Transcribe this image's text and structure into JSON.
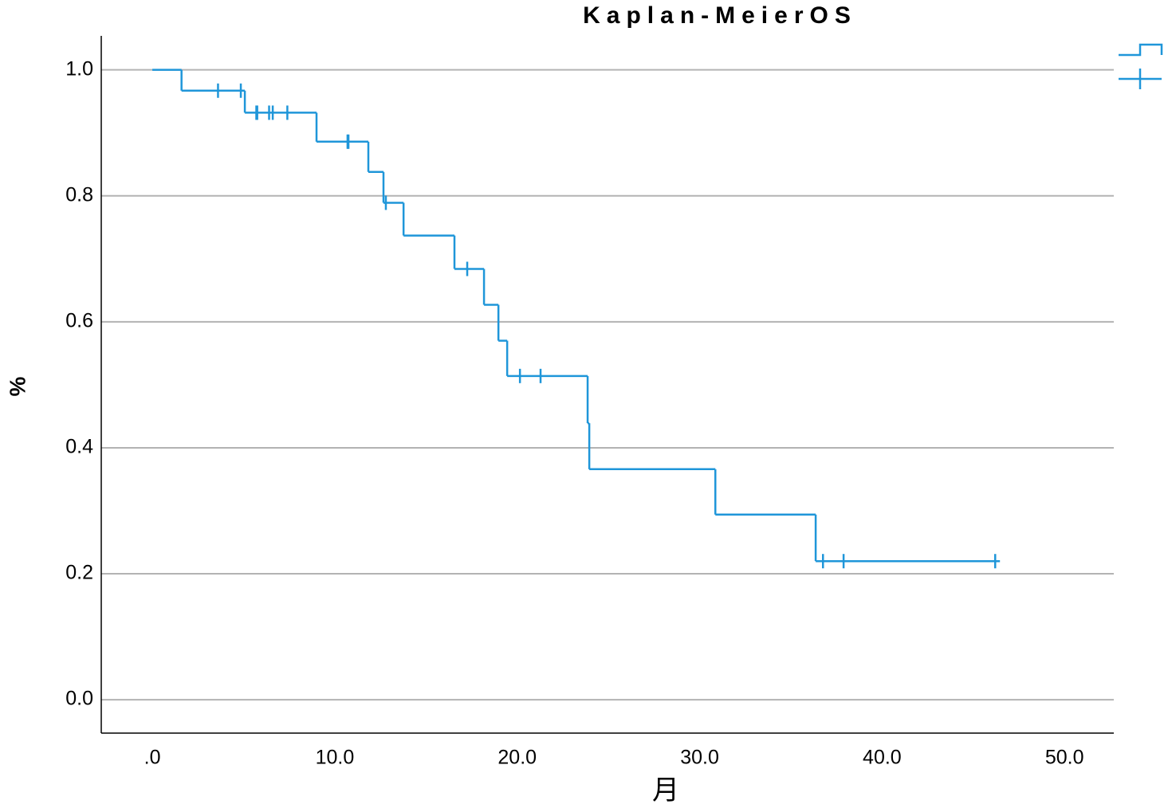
{
  "chart_data": {
    "type": "km",
    "title": "Kaplan-MeierOS",
    "x_label": "月",
    "y_label": "%",
    "xlim": [
      -2.8,
      52.7
    ],
    "ylim": [
      -0.053,
      1.054
    ],
    "xticks": [
      {
        "value": 0,
        "label": ".0"
      },
      {
        "value": 10,
        "label": "10.0"
      },
      {
        "value": 20,
        "label": "20.0"
      },
      {
        "value": 30,
        "label": "30.0"
      },
      {
        "value": 40,
        "label": "40.0"
      },
      {
        "value": 50,
        "label": "50.0"
      }
    ],
    "yticks": [
      {
        "value": 0,
        "label": "0.0"
      },
      0.2,
      0.4,
      0.6,
      0.8,
      {
        "value": 1,
        "label": "1.0"
      }
    ],
    "grid": true,
    "series": [
      {
        "color": "#1f96d9",
        "x": [
          0,
          1.6,
          5.07,
          9.0,
          11.84,
          12.67,
          13.77,
          16.56,
          18.18,
          18.97,
          19.45,
          23.86,
          23.95,
          30.86,
          36.36,
          46.46
        ],
        "values": [
          1,
          0.967,
          0.932,
          0.886,
          0.838,
          0.789,
          0.737,
          0.684,
          0.627,
          0.57,
          0.514,
          0.439,
          0.366,
          0.294,
          0.22,
          0.22
        ],
        "censored_x": [
          3.6,
          4.85,
          5.7,
          5.75,
          6.4,
          6.6,
          7.4,
          10.7,
          10.75,
          12.8,
          17.26,
          20.15,
          21.28,
          36.76,
          37.89,
          46.2
        ],
        "censored_values": [
          0.967,
          0.967,
          0.932,
          0.932,
          0.932,
          0.932,
          0.932,
          0.886,
          0.886,
          0.789,
          0.684,
          0.514,
          0.514,
          0.22,
          0.22,
          0.22
        ]
      }
    ]
  }
}
